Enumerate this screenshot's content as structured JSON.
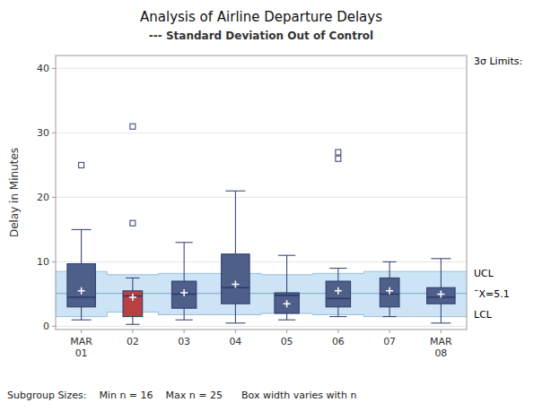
{
  "chart_data": {
    "type": "box",
    "title": "Analysis of Airline Departure Delays",
    "subtitle": "--- Standard Deviation Out of Control",
    "y_label": "Delay in Minutes",
    "categories": [
      "MAR\n01",
      "02",
      "03",
      "04",
      "05",
      "06",
      "07",
      "MAR\n08"
    ],
    "ylim": [
      -0.5,
      42
    ],
    "yticks": [
      0,
      10,
      20,
      30,
      40
    ],
    "grid": true,
    "ucl": 8.2,
    "lcl": 1.8,
    "mean_line": 5.1,
    "sigma_label": "3σ Limits:",
    "ucl_label": "UCL",
    "lcl_label": "LCL",
    "mean_label": "¯X=5.1",
    "subgroup_text": "Subgroup Sizes:    Min n = 16    Max n = 25      Box width varies with n",
    "band_color": "#cce4f5",
    "limit_line_color": "#9bbdd4",
    "mean_line_color": "#7aaac8",
    "box_edge_color": "#2a3a6a",
    "colors": [
      "#4e5f8a",
      "#b84040",
      "#4e5f8a",
      "#4e5f8a",
      "#4e5f8a",
      "#4e5f8a",
      "#4e5f8a",
      "#4e5f8a"
    ],
    "boxes": [
      {
        "q1": 3.0,
        "median": 4.5,
        "q3": 9.7,
        "whisker_low": 1.0,
        "whisker_high": 15.0,
        "mean": 5.5,
        "fliers_high": [
          25.0
        ],
        "fliers_low": [],
        "width": 0.55
      },
      {
        "q1": 1.5,
        "median": 4.7,
        "q3": 5.5,
        "whisker_low": 0.3,
        "whisker_high": 7.5,
        "mean": 4.5,
        "fliers_high": [
          16.0,
          31.0
        ],
        "fliers_low": [],
        "width": 0.38
      },
      {
        "q1": 2.8,
        "median": 5.0,
        "q3": 7.0,
        "whisker_low": 1.0,
        "whisker_high": 13.0,
        "mean": 5.2,
        "fliers_high": [],
        "fliers_low": [],
        "width": 0.48
      },
      {
        "q1": 3.5,
        "median": 6.0,
        "q3": 11.2,
        "whisker_low": 0.5,
        "whisker_high": 21.0,
        "mean": 6.5,
        "fliers_high": [],
        "fliers_low": [],
        "width": 0.55
      },
      {
        "q1": 2.0,
        "median": 4.8,
        "q3": 5.2,
        "whisker_low": 1.0,
        "whisker_high": 11.0,
        "mean": 3.5,
        "fliers_high": [],
        "fliers_low": [],
        "width": 0.48
      },
      {
        "q1": 3.0,
        "median": 4.3,
        "q3": 7.0,
        "whisker_low": 1.5,
        "whisker_high": 9.0,
        "mean": 5.5,
        "fliers_high": [
          26.0,
          27.0
        ],
        "fliers_low": [],
        "width": 0.48
      },
      {
        "q1": 3.0,
        "median": 5.0,
        "q3": 7.5,
        "whisker_low": 1.5,
        "whisker_high": 10.0,
        "mean": 5.5,
        "fliers_high": [],
        "fliers_low": [],
        "width": 0.38
      },
      {
        "q1": 3.5,
        "median": 4.5,
        "q3": 6.0,
        "whisker_low": 0.5,
        "whisker_high": 10.5,
        "mean": 5.0,
        "fliers_high": [],
        "fliers_low": [],
        "width": 0.55
      }
    ],
    "ucl_band_tops": [
      8.5,
      8.0,
      8.2,
      8.2,
      8.0,
      8.2,
      8.5,
      8.5
    ],
    "lcl_band_bots": [
      1.5,
      2.2,
      1.8,
      1.8,
      2.0,
      1.8,
      1.5,
      1.5
    ]
  }
}
